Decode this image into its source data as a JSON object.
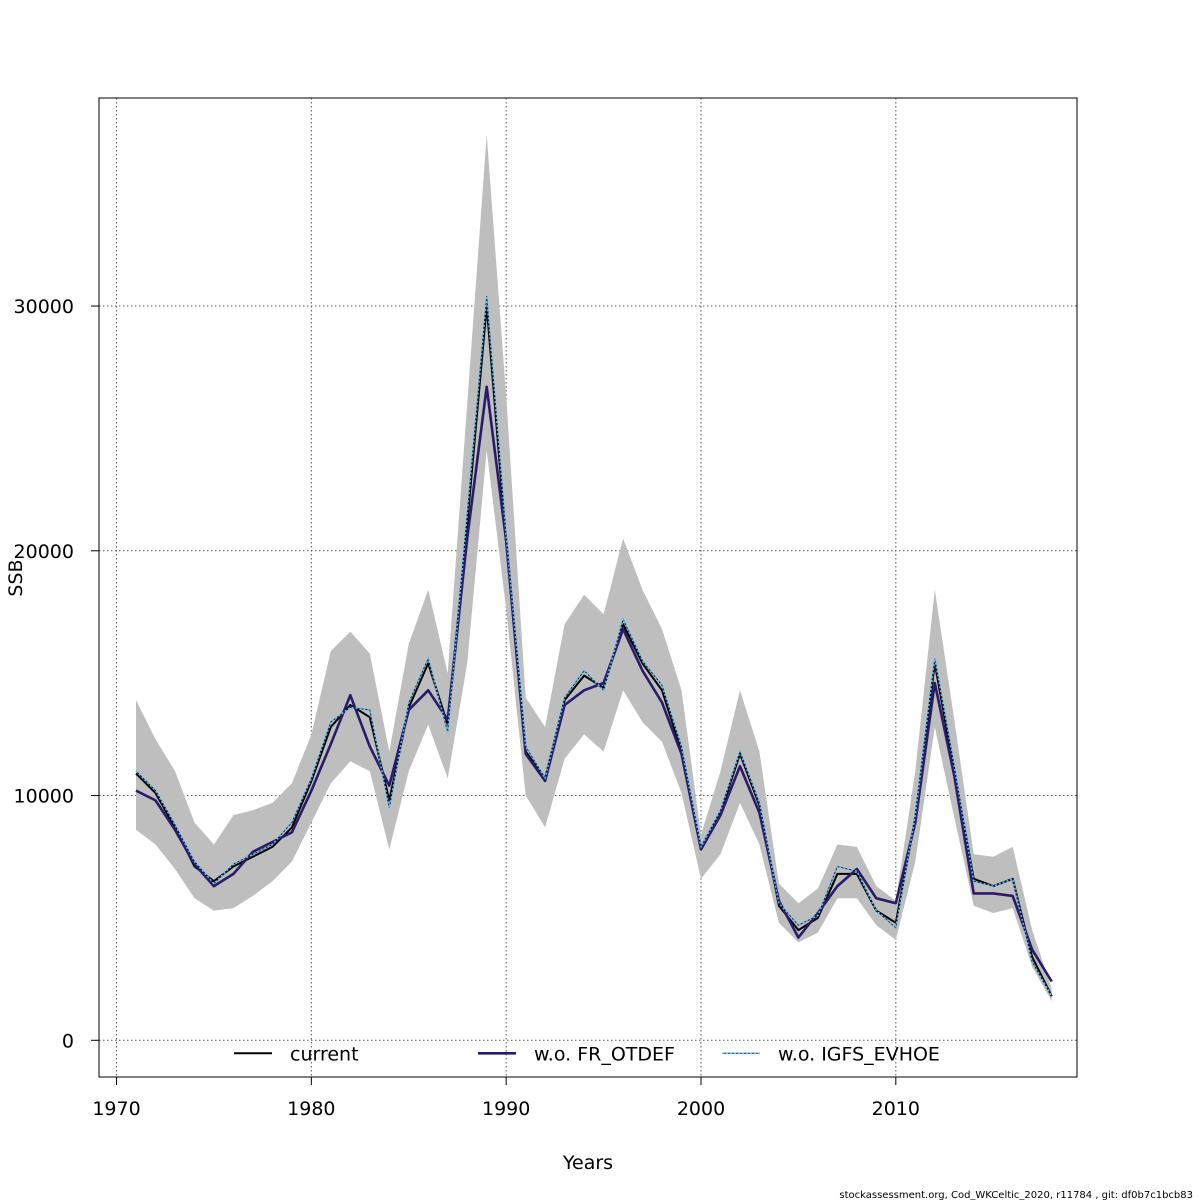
{
  "chart_data": {
    "type": "line",
    "title": "",
    "xlabel": "Years",
    "ylabel": "SSB",
    "xlim": [
      1969.1,
      2019.3
    ],
    "ylim": [
      -1500,
      38500
    ],
    "x_ticks": [
      1970,
      1980,
      1990,
      2000,
      2010
    ],
    "y_ticks": [
      0,
      10000,
      20000,
      30000
    ],
    "grid": true,
    "legend_position": "bottom",
    "x": [
      1971,
      1972,
      1973,
      1974,
      1975,
      1976,
      1977,
      1978,
      1979,
      1980,
      1981,
      1982,
      1983,
      1984,
      1985,
      1986,
      1987,
      1988,
      1989,
      1990,
      1991,
      1992,
      1993,
      1994,
      1995,
      1996,
      1997,
      1998,
      1999,
      2000,
      2001,
      2002,
      2003,
      2004,
      2005,
      2006,
      2007,
      2008,
      2009,
      2010,
      2011,
      2012,
      2013,
      2014,
      2015,
      2016,
      2017,
      2018
    ],
    "band": {
      "name": "confidence interval",
      "color": "#bebebe",
      "upper": [
        13900,
        12300,
        11000,
        8900,
        8000,
        9200,
        9400,
        9700,
        10500,
        12500,
        15900,
        16700,
        15800,
        11800,
        16200,
        18400,
        15000,
        26000,
        37000,
        26300,
        14000,
        12800,
        17000,
        18200,
        17400,
        20500,
        18400,
        16800,
        14300,
        8400,
        11000,
        14300,
        11800,
        6400,
        5600,
        6200,
        8000,
        7900,
        6300,
        5700,
        11000,
        18400,
        13100,
        7600,
        7500,
        7900,
        4500,
        2100
      ],
      "lower": [
        8600,
        8000,
        7000,
        5800,
        5300,
        5400,
        5900,
        6500,
        7300,
        8900,
        10500,
        11400,
        11000,
        7800,
        11000,
        12900,
        10700,
        15400,
        24100,
        17600,
        10000,
        8700,
        11500,
        12500,
        11800,
        14300,
        13000,
        12200,
        10100,
        6600,
        7600,
        9700,
        8000,
        4800,
        4000,
        4400,
        5800,
        5800,
        4700,
        4100,
        7300,
        12800,
        9100,
        5500,
        5200,
        5400,
        3000,
        1600
      ]
    },
    "series": [
      {
        "name": "current",
        "color": "#000000",
        "dash": "solid",
        "width": 2,
        "values": [
          10900,
          10100,
          8700,
          7100,
          6500,
          7100,
          7500,
          7900,
          8700,
          10600,
          12800,
          13700,
          13200,
          9800,
          13600,
          15400,
          12900,
          21100,
          30000,
          20300,
          11800,
          10700,
          13900,
          14900,
          14400,
          17000,
          15400,
          14300,
          11800,
          7800,
          9300,
          11700,
          9600,
          5500,
          4500,
          5000,
          6800,
          6800,
          5300,
          4800,
          9100,
          15400,
          11000,
          6600,
          6300,
          6600,
          3400,
          1800
        ]
      },
      {
        "name": "w.o. FR_OTDEF",
        "color": "#2b1a6b",
        "dash": "solid",
        "width": 2.6,
        "values": [
          10200,
          9800,
          8600,
          7200,
          6300,
          6800,
          7700,
          8100,
          8500,
          10200,
          12100,
          14100,
          12000,
          10400,
          13500,
          14300,
          13100,
          20500,
          26700,
          20400,
          11700,
          10600,
          13700,
          14300,
          14600,
          16800,
          15100,
          13800,
          11700,
          7800,
          9200,
          11200,
          9300,
          5700,
          4200,
          5200,
          6300,
          7000,
          5800,
          5600,
          8900,
          14600,
          10800,
          6000,
          6000,
          5900,
          3700,
          2400
        ]
      },
      {
        "name": "w.o. IGFS_EVHOE",
        "color": "#4fc3f7",
        "dash": "dotted",
        "width": 1.6,
        "values": [
          11000,
          10200,
          8800,
          7300,
          6400,
          7200,
          7600,
          8000,
          8900,
          10700,
          13000,
          13600,
          13500,
          9500,
          13800,
          15600,
          12600,
          21500,
          30400,
          20600,
          12000,
          10700,
          14000,
          15100,
          14300,
          17200,
          15500,
          14500,
          12000,
          7900,
          9400,
          11800,
          9700,
          5600,
          4700,
          5100,
          7100,
          6900,
          5300,
          4600,
          9200,
          15600,
          11200,
          6500,
          6300,
          6600,
          3200,
          1800
        ]
      }
    ]
  },
  "footer_text": "stockassessment.org, Cod_WKCeltic_2020, r11784 , git: df0b7c1bcb83"
}
